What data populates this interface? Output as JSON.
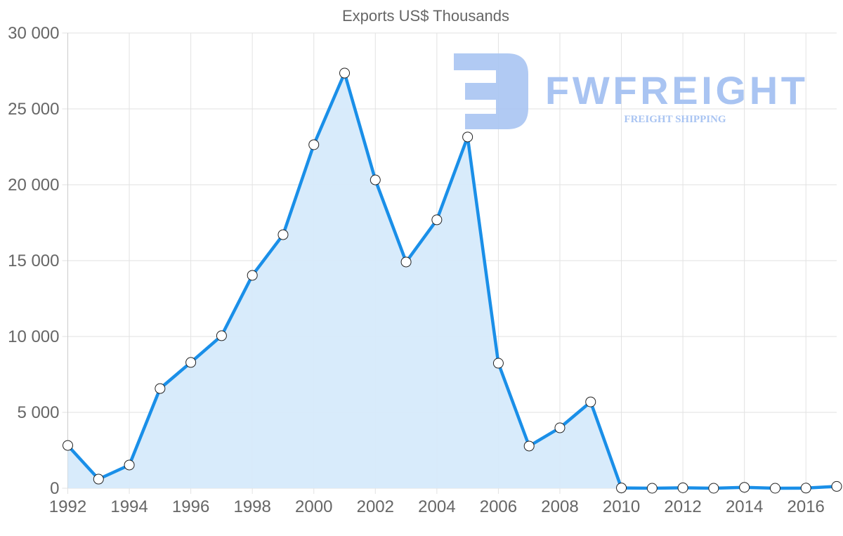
{
  "chart_data": {
    "type": "area",
    "title": "Exports US$ Thousands",
    "xlabel": "",
    "ylabel": "",
    "x": [
      1992,
      1993,
      1994,
      1995,
      1996,
      1997,
      1998,
      1999,
      2000,
      2001,
      2002,
      2003,
      2004,
      2005,
      2006,
      2007,
      2008,
      2009,
      2010,
      2011,
      2012,
      2013,
      2014,
      2015,
      2016,
      2017
    ],
    "series": [
      {
        "name": "Exports US$ Thousands",
        "values": [
          2820,
          600,
          1530,
          6570,
          8290,
          10050,
          14030,
          16710,
          22640,
          27360,
          20320,
          14910,
          17690,
          23150,
          8240,
          2780,
          3980,
          5690,
          20,
          0,
          30,
          0,
          60,
          0,
          10,
          120
        ],
        "color": "#1a8fe8",
        "fill": "#d6eafb"
      }
    ],
    "ylim": [
      0,
      30000
    ],
    "yticks": [
      0,
      5000,
      10000,
      15000,
      20000,
      25000,
      30000
    ],
    "ytick_labels": [
      "0",
      "5 000",
      "10 000",
      "15 000",
      "20 000",
      "25 000",
      "30 000"
    ],
    "xticks": [
      1992,
      1994,
      1996,
      1998,
      2000,
      2002,
      2004,
      2006,
      2008,
      2010,
      2012,
      2014,
      2016
    ],
    "grid": true,
    "legend": "none"
  },
  "watermark": {
    "brand": "FWFREIGHT",
    "tagline": "FREIGHT SHIPPING",
    "color": "#a9c4f2"
  }
}
